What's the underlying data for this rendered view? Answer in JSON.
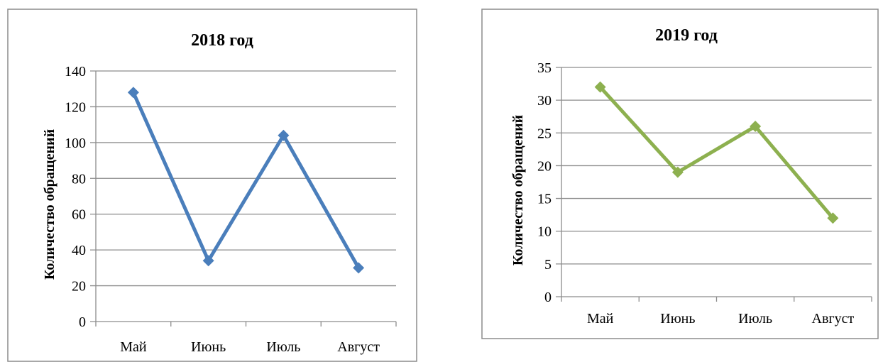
{
  "chart_data": [
    {
      "type": "line",
      "title": "2018 год",
      "xlabel": "",
      "ylabel": "Количество обращений",
      "categories": [
        "Май",
        "Июнь",
        "Июль",
        "Август"
      ],
      "values": [
        128,
        34,
        104,
        30
      ],
      "ylim": [
        0,
        140
      ],
      "yticks": [
        0,
        20,
        40,
        60,
        80,
        100,
        120,
        140
      ],
      "ytick_labels": [
        "0",
        "20",
        "40",
        "60",
        "80",
        "100",
        "120",
        "140"
      ],
      "grid": true,
      "legend": "none",
      "color": "#4a7ebb"
    },
    {
      "type": "line",
      "title": "2019 год",
      "xlabel": "",
      "ylabel": "Количество обращений",
      "categories": [
        "Май",
        "Июнь",
        "Июль",
        "Август"
      ],
      "values": [
        32,
        19,
        26,
        12
      ],
      "ylim": [
        0,
        35
      ],
      "yticks": [
        0,
        5,
        10,
        15,
        20,
        25,
        30,
        35
      ],
      "ytick_labels": [
        "0",
        "5",
        "10",
        "15",
        "20",
        "25",
        "30",
        "35"
      ],
      "grid": true,
      "legend": "none",
      "color": "#8db04f"
    }
  ]
}
